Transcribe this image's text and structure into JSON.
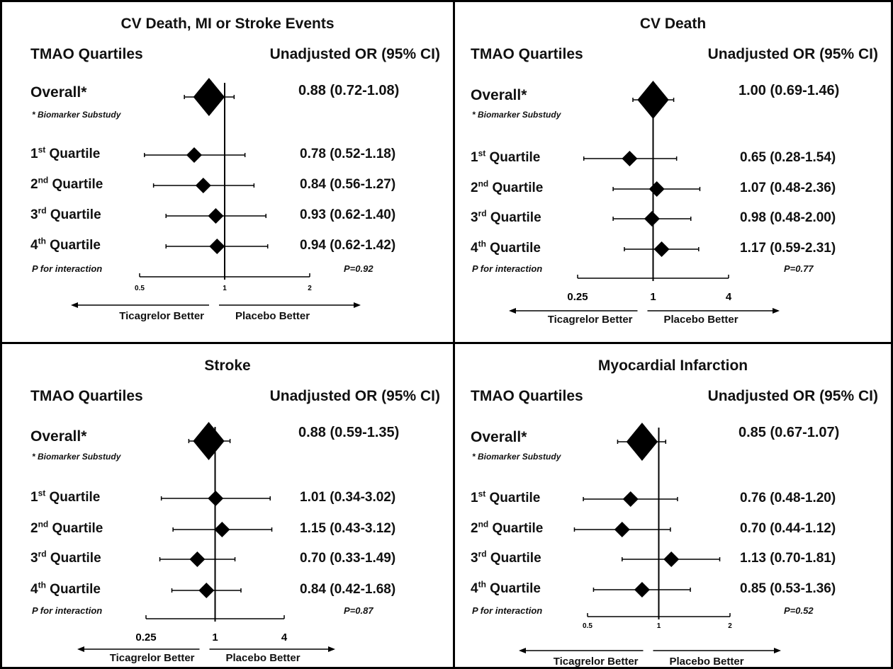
{
  "colors": {
    "background": "#ffffff",
    "border": "#000000",
    "marker": "#000000",
    "text": "#111111"
  },
  "panels": [
    {
      "title": "CV Death, MI or Stroke Events",
      "col_header_left": "TMAO Quartiles",
      "col_header_right": "Unadjusted OR (95% CI)",
      "overall_label": "Overall*",
      "footnote": "* Biomarker Substudy",
      "interaction_label": "P for interaction",
      "p_value": "P=0.92",
      "tick_labels": [
        "0.5",
        "1",
        "2"
      ],
      "tick_style": "small",
      "left_direction": "Ticagrelor Better",
      "right_direction": "Placebo Better",
      "chart_data": {
        "type": "forest",
        "axis": {
          "scale": "log",
          "range": [
            0.5,
            2
          ],
          "ticks": [
            0.5,
            1,
            2
          ],
          "reference": 1
        },
        "rows": [
          {
            "label": "Overall*",
            "or": 0.88,
            "lo": 0.72,
            "hi": 1.08,
            "text": "0.88 (0.72-1.08)"
          },
          {
            "label": "1st Quartile",
            "or": 0.78,
            "lo": 0.52,
            "hi": 1.18,
            "text": "0.78 (0.52-1.18)"
          },
          {
            "label": "2nd Quartile",
            "or": 0.84,
            "lo": 0.56,
            "hi": 1.27,
            "text": "0.84 (0.56-1.27)"
          },
          {
            "label": "3rd Quartile",
            "or": 0.93,
            "lo": 0.62,
            "hi": 1.4,
            "text": "0.93 (0.62-1.40)"
          },
          {
            "label": "4th Quartile",
            "or": 0.94,
            "lo": 0.62,
            "hi": 1.42,
            "text": "0.94 (0.62-1.42)"
          }
        ]
      }
    },
    {
      "title": "CV Death",
      "col_header_left": "TMAO Quartiles",
      "col_header_right": "Unadjusted OR (95% CI)",
      "overall_label": "Overall*",
      "footnote": "* Biomarker Substudy",
      "interaction_label": "P for interaction",
      "p_value": "P=0.77",
      "tick_labels": [
        "0.25",
        "1",
        "4"
      ],
      "tick_style": "large",
      "left_direction": "Ticagrelor Better",
      "right_direction": "Placebo Better",
      "chart_data": {
        "type": "forest",
        "axis": {
          "scale": "log",
          "range": [
            0.25,
            4
          ],
          "ticks": [
            0.25,
            1,
            4
          ],
          "reference": 1
        },
        "rows": [
          {
            "label": "Overall*",
            "or": 1.0,
            "lo": 0.69,
            "hi": 1.46,
            "text": "1.00 (0.69-1.46)"
          },
          {
            "label": "1st Quartile",
            "or": 0.65,
            "lo": 0.28,
            "hi": 1.54,
            "text": "0.65 (0.28-1.54)"
          },
          {
            "label": "2nd Quartile",
            "or": 1.07,
            "lo": 0.48,
            "hi": 2.36,
            "text": "1.07 (0.48-2.36)"
          },
          {
            "label": "3rd Quartile",
            "or": 0.98,
            "lo": 0.48,
            "hi": 2.0,
            "text": "0.98 (0.48-2.00)"
          },
          {
            "label": "4th Quartile",
            "or": 1.17,
            "lo": 0.59,
            "hi": 2.31,
            "text": "1.17 (0.59-2.31)"
          }
        ]
      }
    },
    {
      "title": "Stroke",
      "col_header_left": "TMAO Quartiles",
      "col_header_right": "Unadjusted OR (95% CI)",
      "overall_label": "Overall*",
      "footnote": "* Biomarker Substudy",
      "interaction_label": "P for interaction",
      "p_value": "P=0.87",
      "tick_labels": [
        "0.25",
        "1",
        "4"
      ],
      "tick_style": "large",
      "left_direction": "Ticagrelor Better",
      "right_direction": "Placebo Better",
      "chart_data": {
        "type": "forest",
        "axis": {
          "scale": "log",
          "range": [
            0.25,
            4
          ],
          "ticks": [
            0.25,
            1,
            4
          ],
          "reference": 1
        },
        "rows": [
          {
            "label": "Overall*",
            "or": 0.88,
            "lo": 0.59,
            "hi": 1.35,
            "text": "0.88 (0.59-1.35)"
          },
          {
            "label": "1st Quartile",
            "or": 1.01,
            "lo": 0.34,
            "hi": 3.02,
            "text": "1.01 (0.34-3.02)"
          },
          {
            "label": "2nd Quartile",
            "or": 1.15,
            "lo": 0.43,
            "hi": 3.12,
            "text": "1.15 (0.43-3.12)"
          },
          {
            "label": "3rd Quartile",
            "or": 0.7,
            "lo": 0.33,
            "hi": 1.49,
            "text": "0.70 (0.33-1.49)"
          },
          {
            "label": "4th Quartile",
            "or": 0.84,
            "lo": 0.42,
            "hi": 1.68,
            "text": "0.84 (0.42-1.68)"
          }
        ]
      }
    },
    {
      "title": "Myocardial Infarction",
      "col_header_left": "TMAO Quartiles",
      "col_header_right": "Unadjusted OR (95% CI)",
      "overall_label": "Overall*",
      "footnote": "* Biomarker Substudy",
      "interaction_label": "P for interaction",
      "p_value": "P=0.52",
      "tick_labels": [
        "0.5",
        "1",
        "2"
      ],
      "tick_style": "small",
      "left_direction": "Ticagrelor Better",
      "right_direction": "Placebo Better",
      "chart_data": {
        "type": "forest",
        "axis": {
          "scale": "log",
          "range": [
            0.5,
            2
          ],
          "ticks": [
            0.5,
            1,
            2
          ],
          "reference": 1
        },
        "rows": [
          {
            "label": "Overall*",
            "or": 0.85,
            "lo": 0.67,
            "hi": 1.07,
            "text": "0.85 (0.67-1.07)"
          },
          {
            "label": "1st Quartile",
            "or": 0.76,
            "lo": 0.48,
            "hi": 1.2,
            "text": "0.76 (0.48-1.20)"
          },
          {
            "label": "2nd Quartile",
            "or": 0.7,
            "lo": 0.44,
            "hi": 1.12,
            "text": "0.70 (0.44-1.12)"
          },
          {
            "label": "3rd Quartile",
            "or": 1.13,
            "lo": 0.7,
            "hi": 1.81,
            "text": "1.13 (0.70-1.81)"
          },
          {
            "label": "4th Quartile",
            "or": 0.85,
            "lo": 0.53,
            "hi": 1.36,
            "text": "0.85 (0.53-1.36)"
          }
        ]
      }
    }
  ]
}
